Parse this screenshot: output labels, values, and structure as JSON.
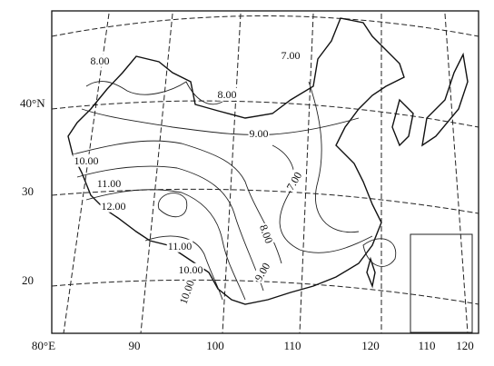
{
  "map": {
    "lat_labels": [
      "40°N",
      "30",
      "20"
    ],
    "lon_labels": [
      "80°E",
      "90",
      "100",
      "110",
      "120",
      "110",
      "120"
    ],
    "contour_labels": [
      "8.00",
      "7.00",
      "8.00",
      "9.00",
      "10.00",
      "11.00",
      "12.00",
      "7.00",
      "8.00",
      "11.00",
      "10.00",
      "10.00",
      "9.00"
    ]
  }
}
